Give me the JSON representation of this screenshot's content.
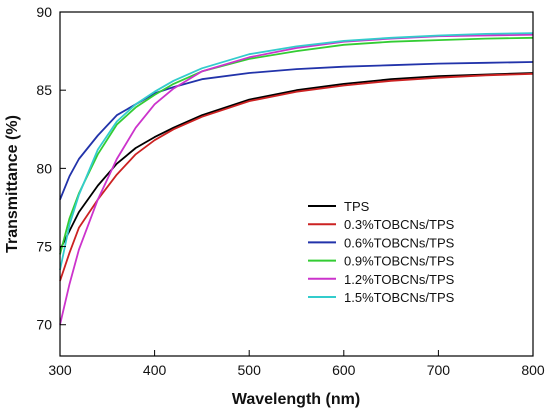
{
  "chart_data": {
    "type": "line",
    "title": "",
    "xlabel": "Wavelength (nm)",
    "ylabel": "Transmittance (%)",
    "xlim": [
      300,
      800
    ],
    "ylim": [
      68,
      90
    ],
    "x_ticks": [
      300,
      400,
      500,
      600,
      700,
      800
    ],
    "y_ticks": [
      70,
      75,
      80,
      85,
      90
    ],
    "grid": false,
    "legend_position": "bottom-right",
    "x": [
      300,
      310,
      320,
      340,
      360,
      380,
      400,
      420,
      450,
      500,
      550,
      600,
      650,
      700,
      750,
      800
    ],
    "series": [
      {
        "name": "TPS",
        "color": "#000000",
        "values": [
          74.8,
          76.0,
          77.2,
          78.9,
          80.3,
          81.3,
          82.0,
          82.6,
          83.4,
          84.4,
          85.0,
          85.4,
          85.7,
          85.9,
          86.0,
          86.1
        ]
      },
      {
        "name": "0.3%TOBCNs/TPS",
        "color": "#cc2222",
        "values": [
          72.8,
          74.6,
          76.2,
          78.0,
          79.6,
          80.9,
          81.8,
          82.5,
          83.3,
          84.3,
          84.9,
          85.3,
          85.6,
          85.8,
          85.95,
          86.05
        ]
      },
      {
        "name": "0.6%TOBCNs/TPS",
        "color": "#2233aa",
        "values": [
          78.0,
          79.5,
          80.6,
          82.1,
          83.4,
          84.1,
          84.8,
          85.2,
          85.7,
          86.1,
          86.35,
          86.5,
          86.6,
          86.7,
          86.75,
          86.8
        ]
      },
      {
        "name": "0.9%TOBCNs/TPS",
        "color": "#33cc33",
        "values": [
          74.5,
          76.8,
          78.4,
          80.9,
          82.8,
          83.9,
          84.7,
          85.4,
          86.2,
          87.0,
          87.5,
          87.9,
          88.1,
          88.2,
          88.3,
          88.35
        ]
      },
      {
        "name": "1.2%TOBCNs/TPS",
        "color": "#cc33cc",
        "values": [
          70.0,
          72.6,
          74.8,
          78.0,
          80.6,
          82.6,
          84.1,
          85.1,
          86.2,
          87.1,
          87.7,
          88.1,
          88.3,
          88.45,
          88.5,
          88.55
        ]
      },
      {
        "name": "1.5%TOBCNs/TPS",
        "color": "#33cccc",
        "values": [
          73.5,
          76.4,
          78.3,
          81.2,
          83.0,
          84.1,
          84.9,
          85.6,
          86.4,
          87.3,
          87.8,
          88.15,
          88.35,
          88.5,
          88.6,
          88.65
        ]
      }
    ]
  }
}
